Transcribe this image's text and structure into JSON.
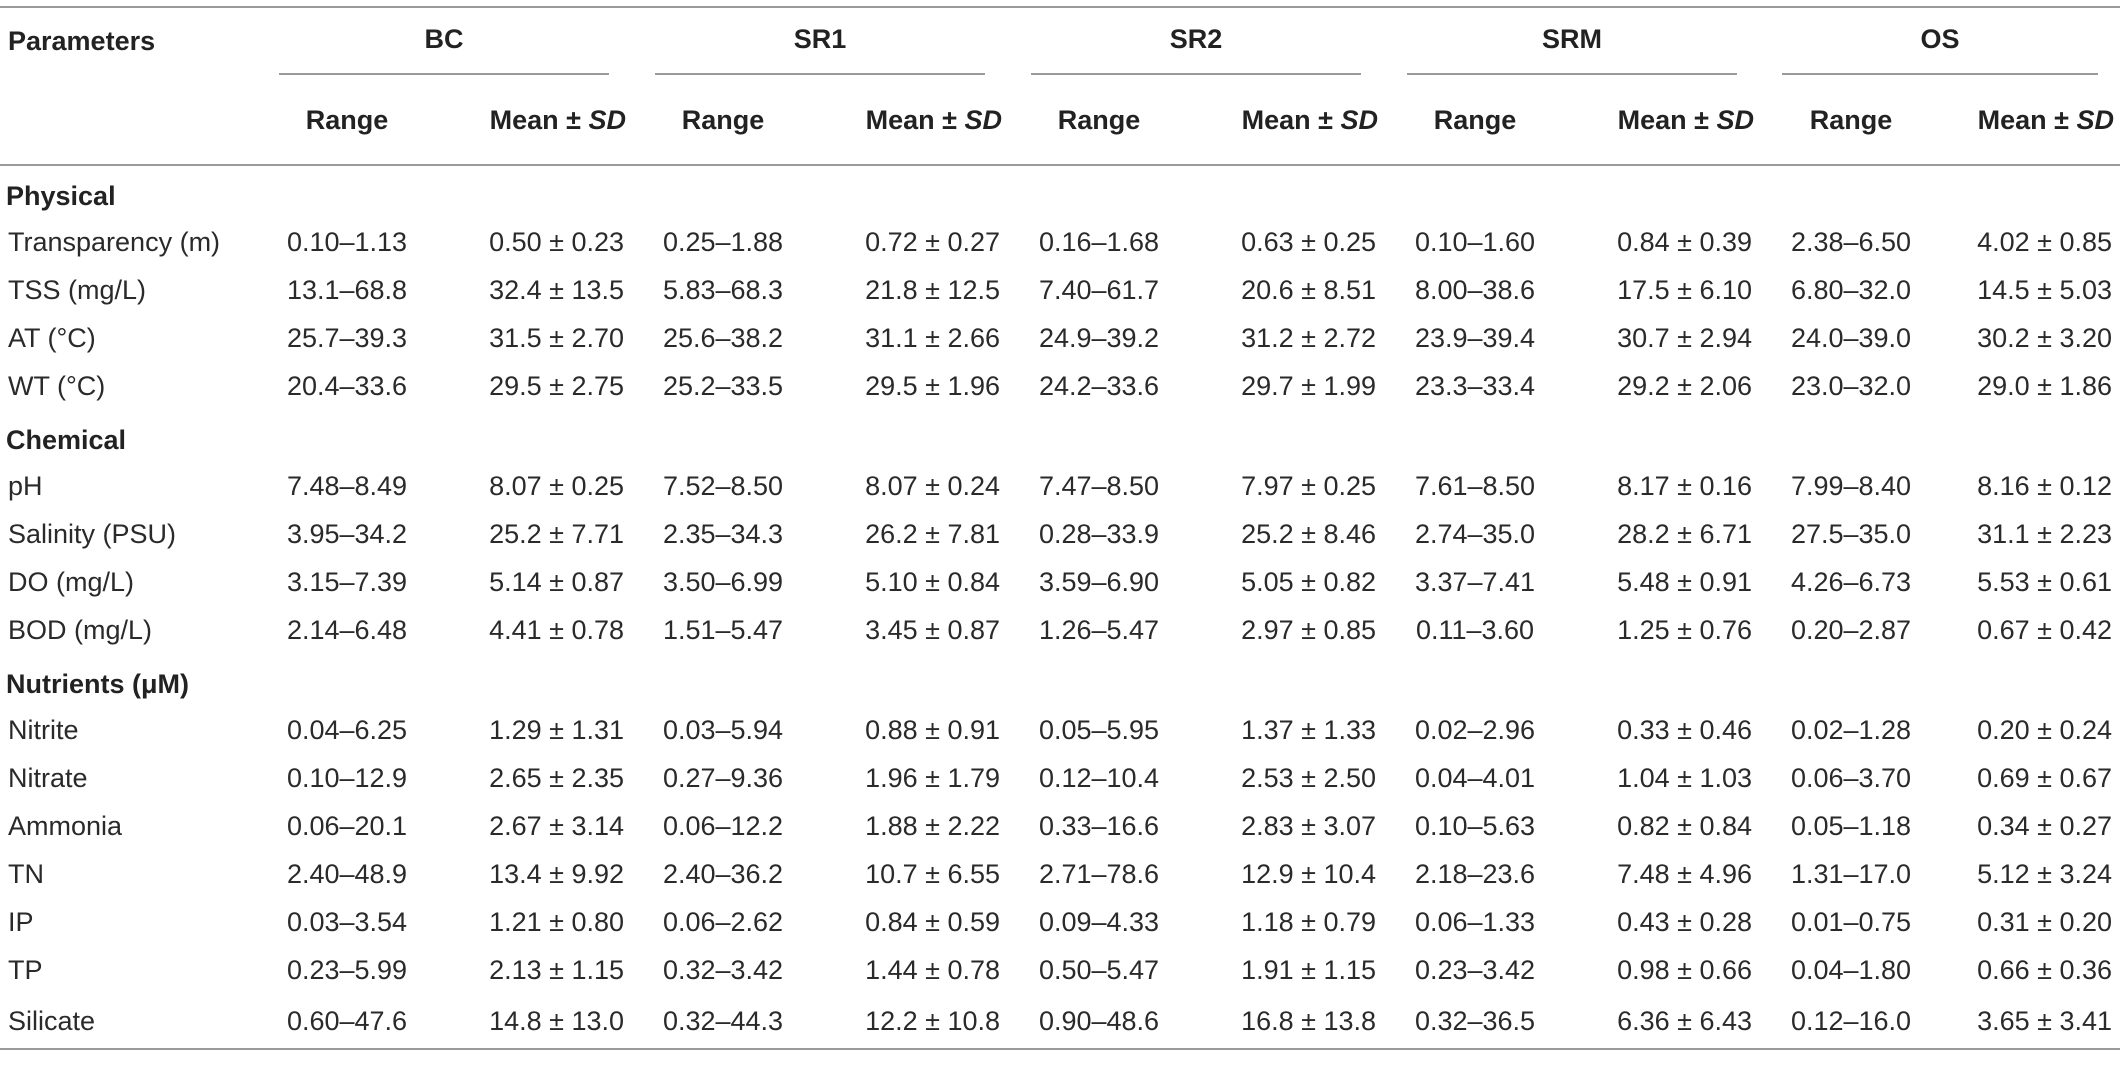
{
  "header": {
    "parameters_label": "Parameters",
    "groups": [
      "BC",
      "SR1",
      "SR2",
      "SRM",
      "OS"
    ],
    "range_label": "Range",
    "mean_label_prefix": "Mean ± ",
    "mean_label_sd": "SD"
  },
  "sections": [
    {
      "title": "Physical",
      "rows": [
        {
          "label": "Transparency (m)",
          "values": [
            "0.10–1.13",
            "0.50 ± 0.23",
            "0.25–1.88",
            "0.72 ± 0.27",
            "0.16–1.68",
            "0.63 ± 0.25",
            "0.10–1.60",
            "0.84 ± 0.39",
            "2.38–6.50",
            "4.02 ± 0.85"
          ]
        },
        {
          "label": "TSS (mg/L)",
          "values": [
            "13.1–68.8",
            "32.4 ± 13.5",
            "5.83–68.3",
            "21.8 ± 12.5",
            "7.40–61.7",
            "20.6 ± 8.51",
            "8.00–38.6",
            "17.5 ± 6.10",
            "6.80–32.0",
            "14.5 ± 5.03"
          ]
        },
        {
          "label": "AT (°C)",
          "values": [
            "25.7–39.3",
            "31.5 ± 2.70",
            "25.6–38.2",
            "31.1 ± 2.66",
            "24.9–39.2",
            "31.2 ± 2.72",
            "23.9–39.4",
            "30.7 ± 2.94",
            "24.0–39.0",
            "30.2 ± 3.20"
          ]
        },
        {
          "label": "WT (°C)",
          "values": [
            "20.4–33.6",
            "29.5 ± 2.75",
            "25.2–33.5",
            "29.5 ± 1.96",
            "24.2–33.6",
            "29.7 ± 1.99",
            "23.3–33.4",
            "29.2 ± 2.06",
            "23.0–32.0",
            "29.0 ± 1.86"
          ]
        }
      ]
    },
    {
      "title": "Chemical",
      "rows": [
        {
          "label": "pH",
          "values": [
            "7.48–8.49",
            "8.07 ± 0.25",
            "7.52–8.50",
            "8.07 ± 0.24",
            "7.47–8.50",
            "7.97 ± 0.25",
            "7.61–8.50",
            "8.17 ± 0.16",
            "7.99–8.40",
            "8.16 ± 0.12"
          ]
        },
        {
          "label": "Salinity (PSU)",
          "values": [
            "3.95–34.2",
            "25.2 ± 7.71",
            "2.35–34.3",
            "26.2 ± 7.81",
            "0.28–33.9",
            "25.2 ± 8.46",
            "2.74–35.0",
            "28.2 ± 6.71",
            "27.5–35.0",
            "31.1 ± 2.23"
          ]
        },
        {
          "label": "DO (mg/L)",
          "values": [
            "3.15–7.39",
            "5.14 ± 0.87",
            "3.50–6.99",
            "5.10 ± 0.84",
            "3.59–6.90",
            "5.05 ± 0.82",
            "3.37–7.41",
            "5.48 ± 0.91",
            "4.26–6.73",
            "5.53 ± 0.61"
          ]
        },
        {
          "label": "BOD (mg/L)",
          "values": [
            "2.14–6.48",
            "4.41 ± 0.78",
            "1.51–5.47",
            "3.45 ± 0.87",
            "1.26–5.47",
            "2.97 ± 0.85",
            "0.11–3.60",
            "1.25 ± 0.76",
            "0.20–2.87",
            "0.67 ± 0.42"
          ]
        }
      ]
    },
    {
      "title": "Nutrients (μM)",
      "rows": [
        {
          "label": "Nitrite",
          "values": [
            "0.04–6.25",
            "1.29 ± 1.31",
            "0.03–5.94",
            "0.88 ± 0.91",
            "0.05–5.95",
            "1.37 ± 1.33",
            "0.02–2.96",
            "0.33 ± 0.46",
            "0.02–1.28",
            "0.20 ± 0.24"
          ]
        },
        {
          "label": "Nitrate",
          "values": [
            "0.10–12.9",
            "2.65 ± 2.35",
            "0.27–9.36",
            "1.96 ± 1.79",
            "0.12–10.4",
            "2.53 ± 2.50",
            "0.04–4.01",
            "1.04 ± 1.03",
            "0.06–3.70",
            "0.69 ± 0.67"
          ]
        },
        {
          "label": "Ammonia",
          "values": [
            "0.06–20.1",
            "2.67 ± 3.14",
            "0.06–12.2",
            "1.88 ± 2.22",
            "0.33–16.6",
            "2.83 ± 3.07",
            "0.10–5.63",
            "0.82 ± 0.84",
            "0.05–1.18",
            "0.34 ± 0.27"
          ]
        },
        {
          "label": "TN",
          "values": [
            "2.40–48.9",
            "13.4 ± 9.92",
            "2.40–36.2",
            "10.7 ± 6.55",
            "2.71–78.6",
            "12.9 ± 10.4",
            "2.18–23.6",
            "7.48 ± 4.96",
            "1.31–17.0",
            "5.12 ± 3.24"
          ]
        },
        {
          "label": "IP",
          "values": [
            "0.03–3.54",
            "1.21 ± 0.80",
            "0.06–2.62",
            "0.84 ± 0.59",
            "0.09–4.33",
            "1.18 ± 0.79",
            "0.06–1.33",
            "0.43 ± 0.28",
            "0.01–0.75",
            "0.31 ± 0.20"
          ]
        },
        {
          "label": "TP",
          "values": [
            "0.23–5.99",
            "2.13 ± 1.15",
            "0.32–3.42",
            "1.44 ± 0.78",
            "0.50–5.47",
            "1.91 ± 1.15",
            "0.23–3.42",
            "0.98 ± 0.66",
            "0.04–1.80",
            "0.66 ± 0.36"
          ]
        },
        {
          "label": "Silicate",
          "values": [
            "0.60–47.6",
            "14.8 ± 13.0",
            "0.32–44.3",
            "12.2 ± 10.8",
            "0.90–48.6",
            "16.8 ± 13.8",
            "0.32–36.5",
            "6.36 ± 6.43",
            "0.12–16.0",
            "3.65 ± 3.41"
          ]
        }
      ]
    }
  ]
}
